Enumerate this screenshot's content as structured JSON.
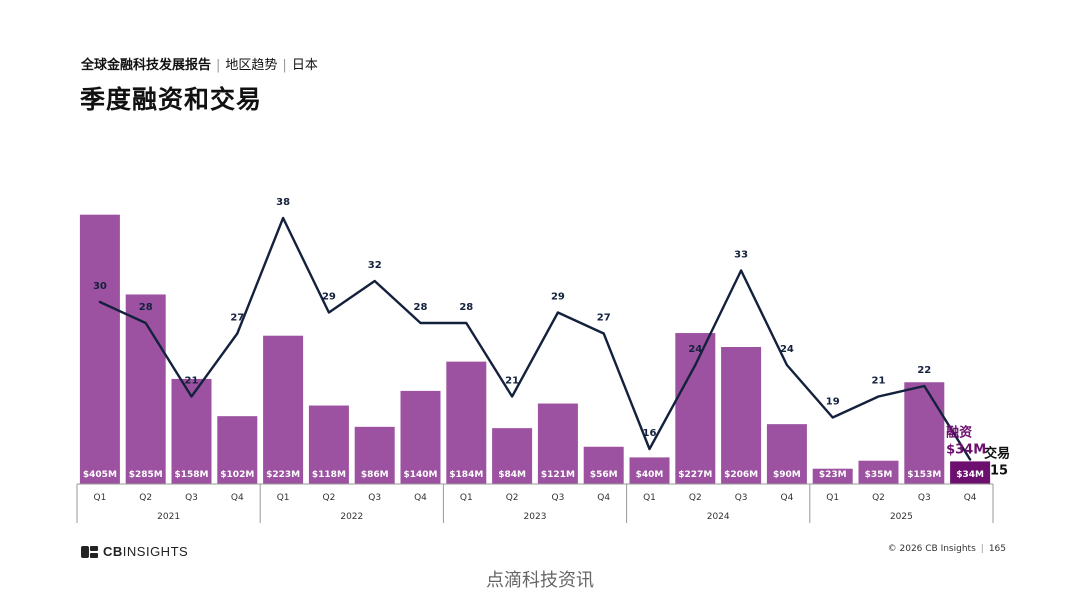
{
  "header": {
    "report_name": "全球金融科技发展报告",
    "section": "地区趋势",
    "region": "日本",
    "title": "季度融资和交易"
  },
  "footer": {
    "brand": "CBINSIGHTS",
    "brand_bold": "CB",
    "brand_light": "INSIGHTS",
    "copyright": "© 2026 CB Insights",
    "page_number": "165",
    "watermark": "点滴科技资讯"
  },
  "chart_data": {
    "type": "bar",
    "title": "",
    "xlabel": "",
    "ylabel": "",
    "years": [
      "2021",
      "2022",
      "2023",
      "2024",
      "2025"
    ],
    "quarters": [
      "Q1",
      "Q2",
      "Q3",
      "Q4",
      "Q1",
      "Q2",
      "Q3",
      "Q4",
      "Q1",
      "Q2",
      "Q3",
      "Q4",
      "Q1",
      "Q2",
      "Q3",
      "Q4",
      "Q1",
      "Q2",
      "Q3",
      "Q4"
    ],
    "series": [
      {
        "name": "融资",
        "type": "bar",
        "unit": "$M",
        "values": [
          405,
          285,
          158,
          102,
          223,
          118,
          86,
          140,
          184,
          84,
          121,
          56,
          40,
          227,
          206,
          90,
          23,
          35,
          153,
          34
        ],
        "labels": [
          "$405M",
          "$285M",
          "$158M",
          "$102M",
          "$223M",
          "$118M",
          "$86M",
          "$140M",
          "$184M",
          "$84M",
          "$121M",
          "$56M",
          "$40M",
          "$227M",
          "$206M",
          "$90M",
          "$23M",
          "$35M",
          "$153M",
          "$34M"
        ],
        "last_label": "$34M"
      },
      {
        "name": "交易",
        "type": "line",
        "values": [
          30,
          28,
          21,
          27,
          38,
          29,
          32,
          28,
          28,
          21,
          29,
          27,
          16,
          24,
          33,
          24,
          19,
          21,
          22,
          15
        ],
        "last_label": "15"
      }
    ],
    "colors": {
      "bar": "#9c52a0",
      "bar_highlight": "#6d0f6f",
      "line": "#14213d",
      "axis": "#999999"
    },
    "grid": false,
    "legend": "inline-end-labels"
  }
}
